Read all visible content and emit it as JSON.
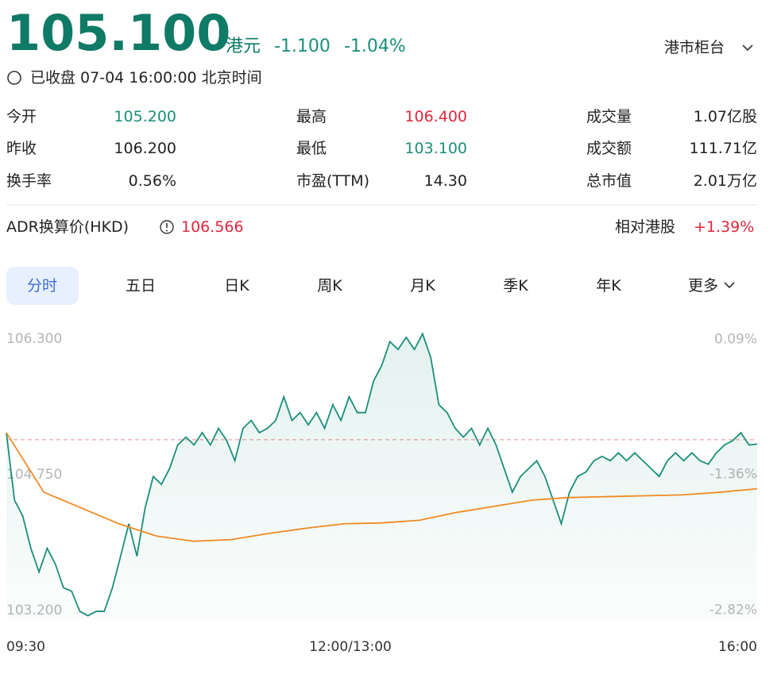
{
  "header": {
    "price": "105.100",
    "unit": "港元",
    "change": "-1.100",
    "change_pct": "-1.04%",
    "market": "港市柜台"
  },
  "status": "已收盘 07-04 16:00:00 北京时间",
  "stats": [
    [
      {
        "label": "今开",
        "value": "105.200"
      },
      {
        "label": "最高",
        "value": "106.400"
      },
      {
        "label": "成交量",
        "value": "1.07亿股"
      }
    ],
    [
      {
        "label": "昨收",
        "value": "106.200"
      },
      {
        "label": "最低",
        "value": "103.100"
      },
      {
        "label": "成交额",
        "value": "111.71亿"
      }
    ],
    [
      {
        "label": "换手率",
        "value": "0.56%"
      },
      {
        "label": "市盈(TTM)",
        "value": "14.30"
      },
      {
        "label": "总市值",
        "value": "2.01万亿"
      }
    ]
  ],
  "adr": {
    "label": "ADR换算价(HKD)",
    "value": "106.566",
    "relative_label": "相对港股",
    "relative_value": "+1.39%"
  },
  "tabs": [
    "分时",
    "五日",
    "日K",
    "周K",
    "月K",
    "季K",
    "年K",
    "更多"
  ],
  "chart_data": {
    "type": "line",
    "xlabels": [
      "09:30",
      "12:00/13:00",
      "16:00"
    ],
    "ylim": [
      103.1,
      106.4
    ],
    "yticks": [
      {
        "value": 106.3,
        "label": "106.300"
      },
      {
        "value": 104.75,
        "label": "104.750"
      },
      {
        "value": 103.2,
        "label": "103.200"
      }
    ],
    "y2lim": [
      -2.92,
      0.19
    ],
    "y2ticks": [
      {
        "value": 0.09,
        "label": "0.09%"
      },
      {
        "value": -1.36,
        "label": "-1.36%"
      },
      {
        "value": -2.82,
        "label": "-2.82%"
      }
    ],
    "reference_line": 105.15,
    "series": [
      {
        "color": "#1a8f7a",
        "values": [
          105.23,
          104.46,
          104.28,
          103.91,
          103.64,
          103.91,
          103.73,
          103.46,
          103.42,
          103.19,
          103.14,
          103.19,
          103.19,
          103.46,
          103.82,
          104.19,
          103.82,
          104.37,
          104.73,
          104.64,
          104.82,
          105.09,
          105.18,
          105.09,
          105.23,
          105.09,
          105.28,
          105.14,
          104.91,
          105.28,
          105.37,
          105.23,
          105.28,
          105.37,
          105.64,
          105.37,
          105.46,
          105.32,
          105.46,
          105.28,
          105.55,
          105.37,
          105.64,
          105.46,
          105.46,
          105.82,
          106.0,
          106.27,
          106.18,
          106.32,
          106.18,
          106.36,
          106.09,
          105.55,
          105.46,
          105.28,
          105.18,
          105.28,
          105.09,
          105.28,
          105.09,
          104.82,
          104.55,
          104.73,
          104.82,
          104.91,
          104.73,
          104.46,
          104.19,
          104.55,
          104.73,
          104.78,
          104.91,
          104.96,
          104.91,
          105.0,
          104.91,
          105.0,
          104.91,
          104.82,
          104.73,
          104.91,
          105.0,
          104.91,
          105.0,
          104.91,
          104.87,
          105.0,
          105.09,
          105.14,
          105.23,
          105.09,
          105.1
        ]
      },
      {
        "color": "#f08a24",
        "values": [
          105.23,
          104.55,
          104.37,
          104.19,
          104.05,
          103.99,
          104.01,
          104.08,
          104.14,
          104.19,
          104.2,
          104.23,
          104.32,
          104.39,
          104.46,
          104.49,
          104.5,
          104.51,
          104.52,
          104.55,
          104.59
        ]
      }
    ]
  }
}
